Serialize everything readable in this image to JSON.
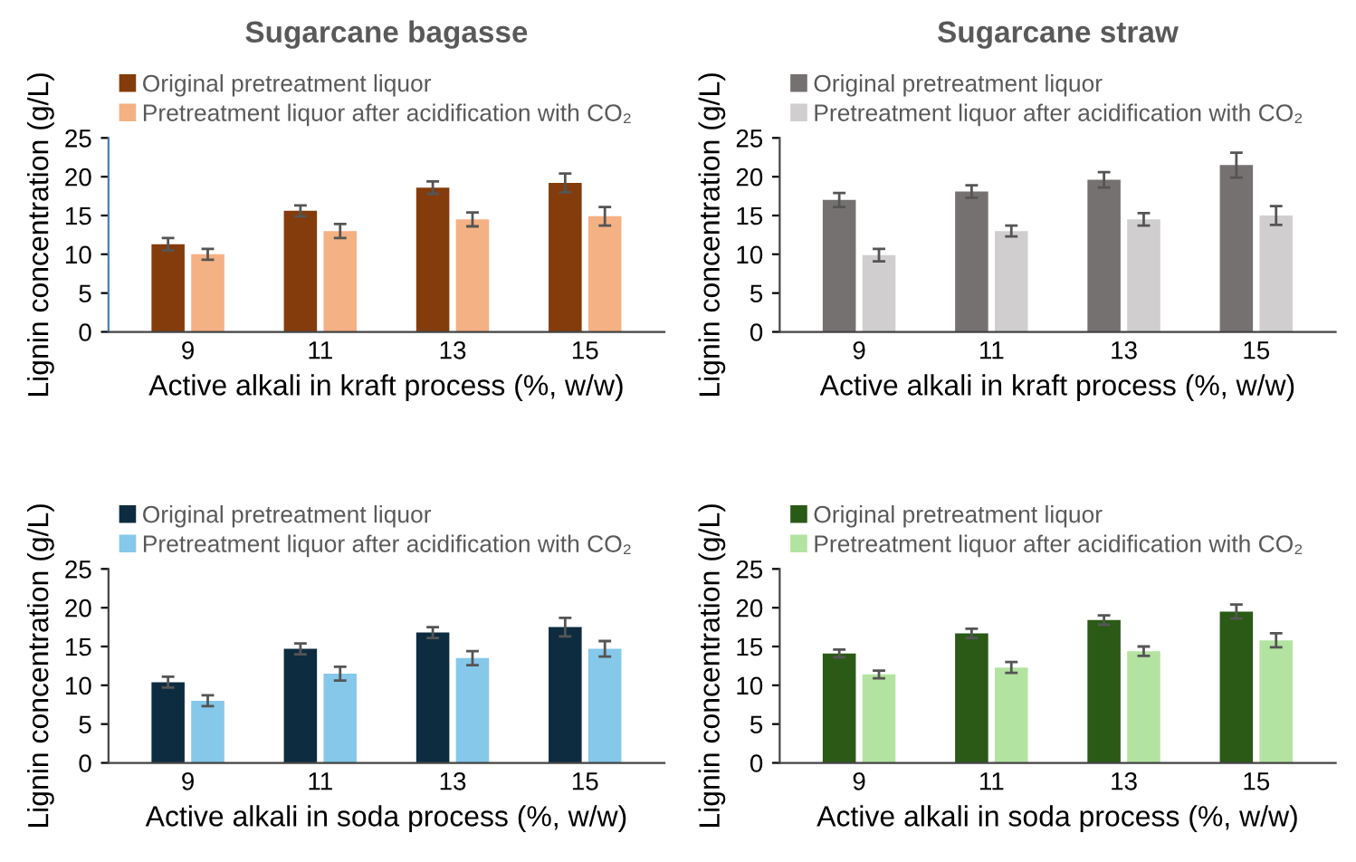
{
  "chart_data": [
    {
      "type": "bar",
      "title": "Sugarcane bagasse",
      "xlabel": "Active alkali in kraft process (%, w/w)",
      "ylabel": "Lignin concentration (g/L)",
      "categories": [
        "9",
        "11",
        "13",
        "15"
      ],
      "ylim": [
        0,
        25
      ],
      "yticks": [
        0,
        5,
        10,
        15,
        20,
        25
      ],
      "legend": "top left",
      "grid": false,
      "series": [
        {
          "name": "Original pretreatment liquor",
          "color": "#843c0c",
          "values": [
            11.3,
            15.6,
            18.6,
            19.2
          ],
          "errors": [
            0.8,
            0.7,
            0.8,
            1.2
          ]
        },
        {
          "name": "Pretreatment liquor after acidification with CO₂",
          "color": "#f4b183",
          "values": [
            10.0,
            13.0,
            14.5,
            14.9
          ],
          "errors": [
            0.7,
            0.9,
            0.9,
            1.2
          ]
        }
      ]
    },
    {
      "type": "bar",
      "title": "Sugarcane straw",
      "xlabel": "Active alkali in kraft process (%, w/w)",
      "ylabel": "Lignin concentration (g/L)",
      "categories": [
        "9",
        "11",
        "13",
        "15"
      ],
      "ylim": [
        0,
        25
      ],
      "yticks": [
        0,
        5,
        10,
        15,
        20,
        25
      ],
      "legend": "top left",
      "grid": false,
      "series": [
        {
          "name": "Original pretreatment liquor",
          "color": "#767171",
          "values": [
            17.0,
            18.1,
            19.6,
            21.5
          ],
          "errors": [
            0.9,
            0.8,
            1.0,
            1.6
          ]
        },
        {
          "name": "Pretreatment liquor after acidification with CO₂",
          "color": "#d0cece",
          "values": [
            9.9,
            13.0,
            14.5,
            15.0
          ],
          "errors": [
            0.8,
            0.7,
            0.8,
            1.2
          ]
        }
      ]
    },
    {
      "type": "bar",
      "xlabel": "Active alkali in soda process (%, w/w)",
      "ylabel": "Lignin concentration (g/L)",
      "categories": [
        "9",
        "11",
        "13",
        "15"
      ],
      "ylim": [
        0,
        25
      ],
      "yticks": [
        0,
        5,
        10,
        15,
        20,
        25
      ],
      "legend": "top left",
      "grid": false,
      "series": [
        {
          "name": "Original pretreatment liquor",
          "color": "#0e2c40",
          "values": [
            10.4,
            14.7,
            16.8,
            17.5
          ],
          "errors": [
            0.7,
            0.7,
            0.7,
            1.2
          ]
        },
        {
          "name": "Pretreatment liquor after acidification with CO₂",
          "color": "#85c8ea",
          "values": [
            8.0,
            11.5,
            13.5,
            14.7
          ],
          "errors": [
            0.7,
            0.9,
            0.9,
            1.0
          ]
        }
      ]
    },
    {
      "type": "bar",
      "xlabel": "Active alkali in soda process (%, w/w)",
      "ylabel": "Lignin concentration (g/L)",
      "categories": [
        "9",
        "11",
        "13",
        "15"
      ],
      "ylim": [
        0,
        25
      ],
      "yticks": [
        0,
        5,
        10,
        15,
        20,
        25
      ],
      "legend": "top left",
      "grid": false,
      "series": [
        {
          "name": "Original pretreatment liquor",
          "color": "#2a5a16",
          "values": [
            14.1,
            16.7,
            18.4,
            19.5
          ],
          "errors": [
            0.5,
            0.6,
            0.6,
            0.9
          ]
        },
        {
          "name": "Pretreatment liquor after acidification with CO₂",
          "color": "#b3e3a0",
          "values": [
            11.4,
            12.3,
            14.4,
            15.8
          ],
          "errors": [
            0.5,
            0.7,
            0.6,
            0.9
          ]
        }
      ]
    }
  ]
}
